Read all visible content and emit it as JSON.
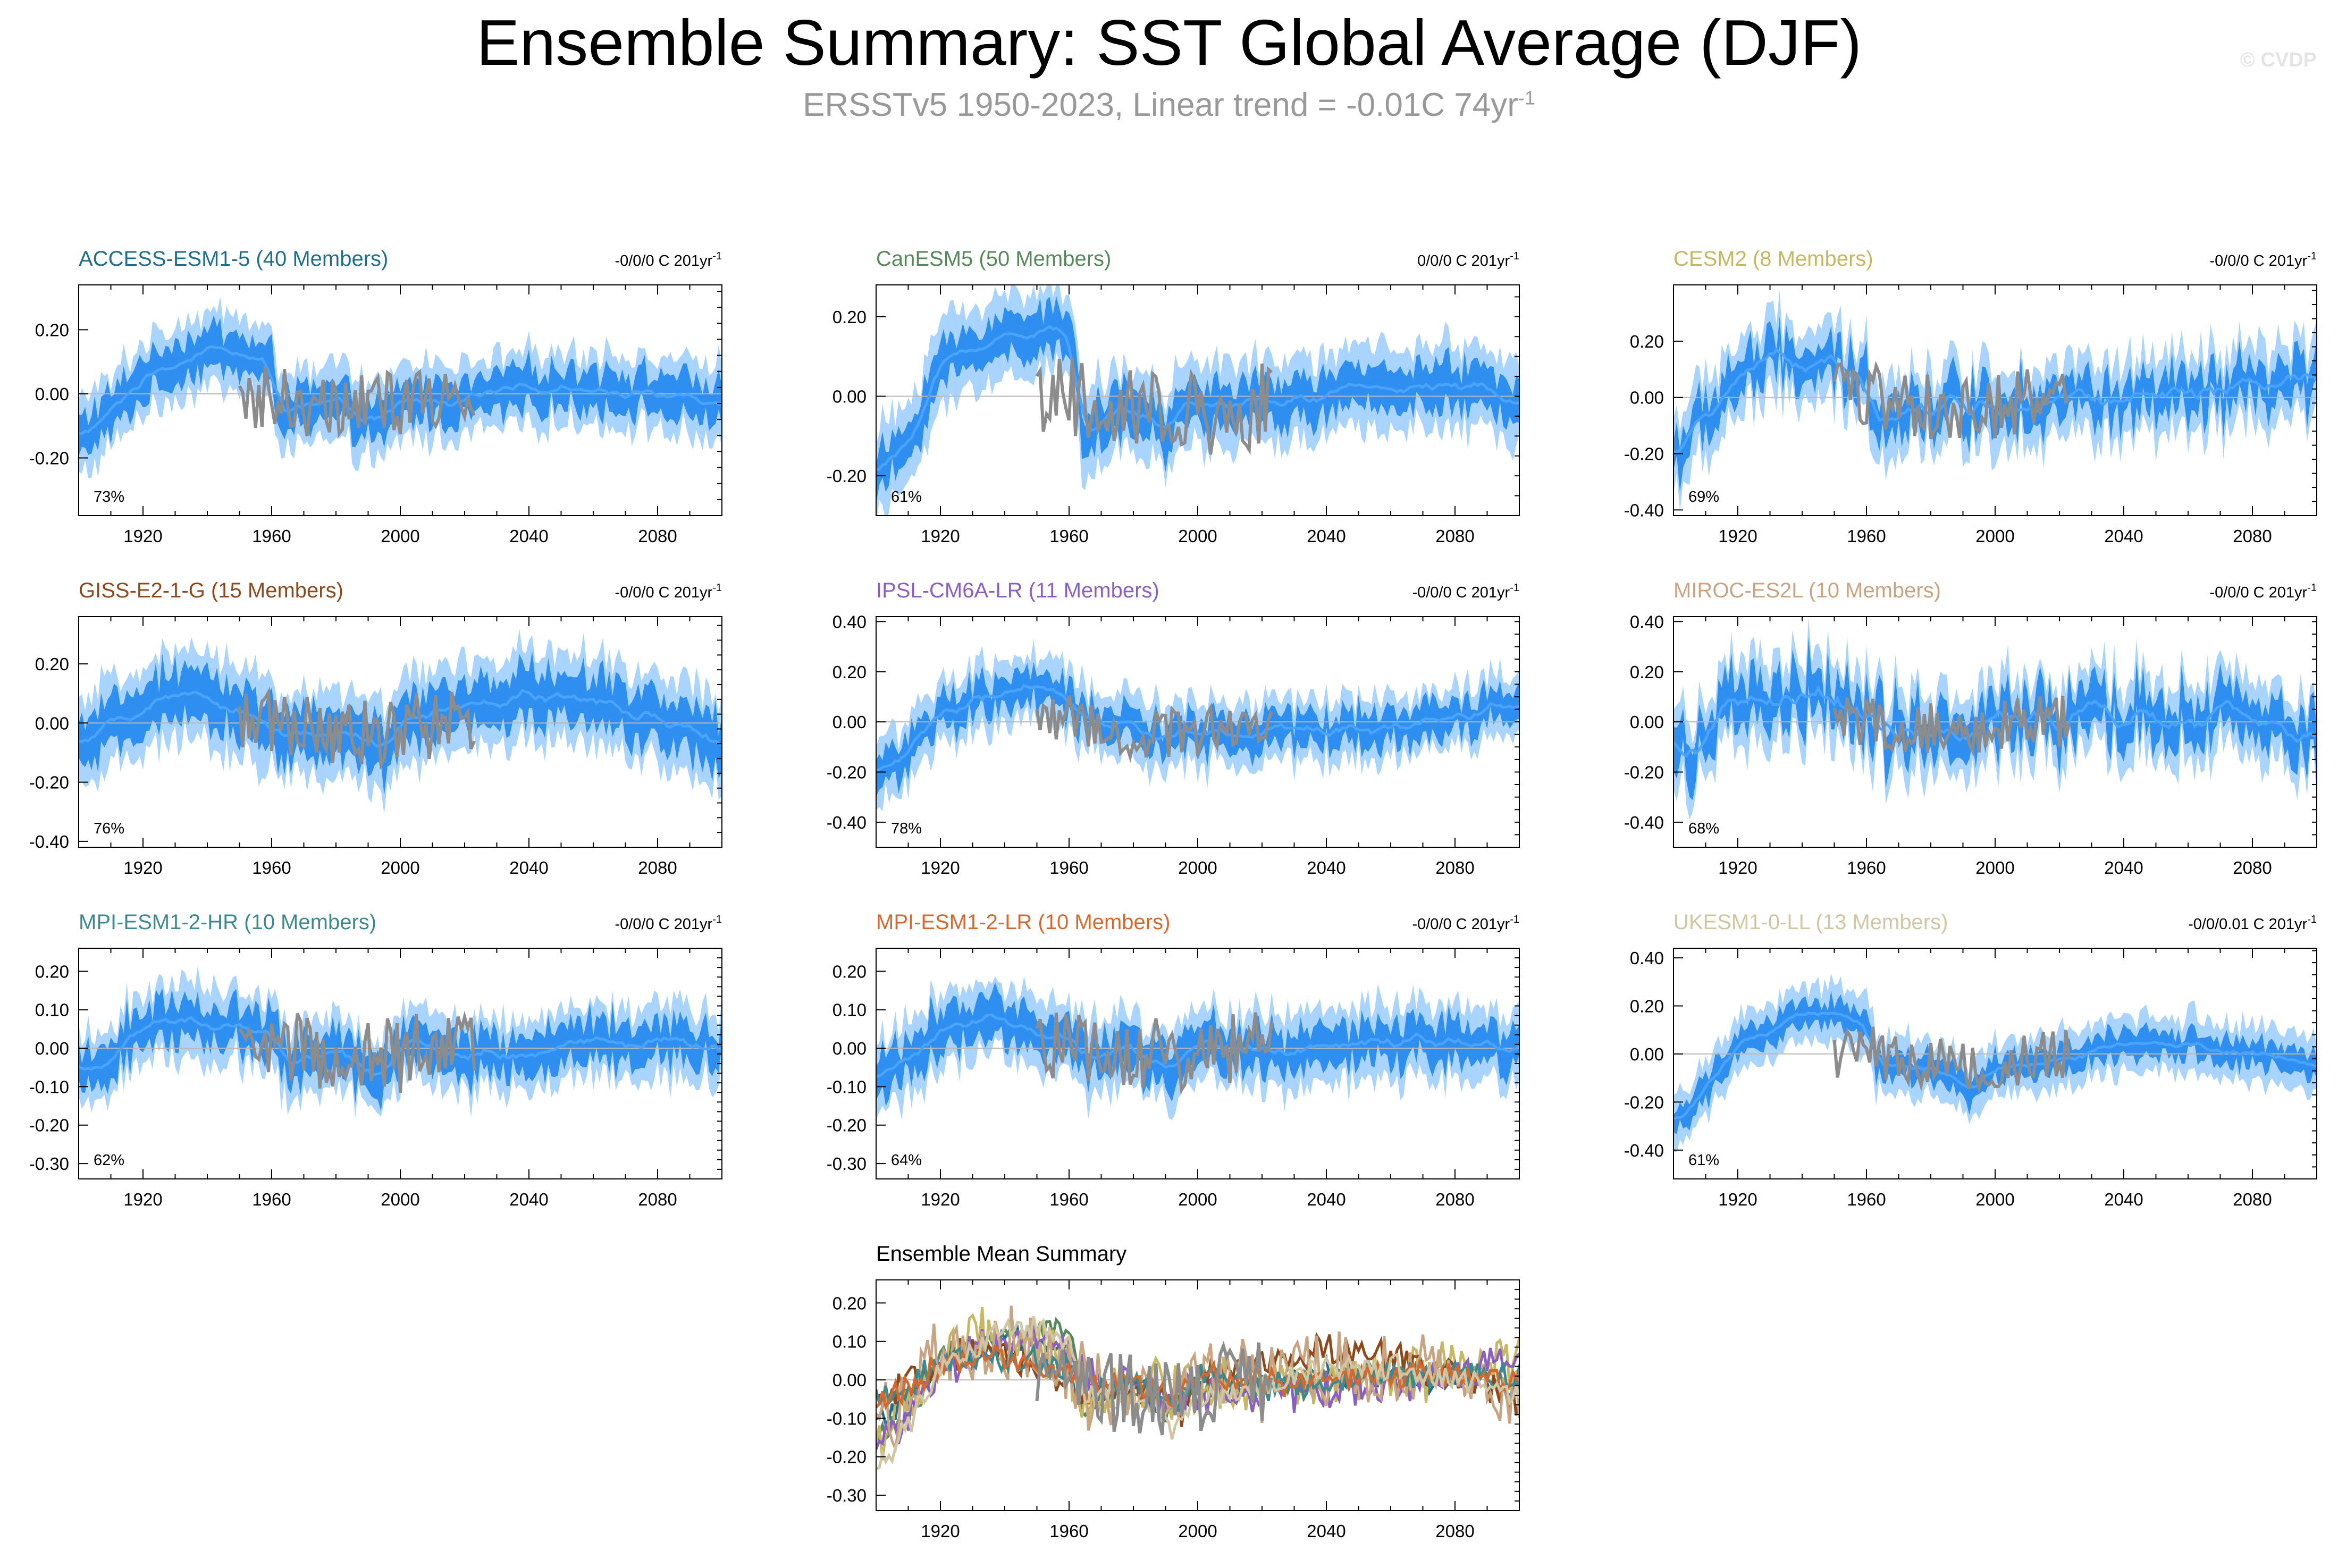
{
  "title": "Ensemble Summary: SST Global Average (DJF)",
  "subtitle": {
    "text": "ERSSTv5 1950-2023, Linear trend = -0.01C 74yr",
    "sup": "-1"
  },
  "credit": "© CVDP",
  "colors": {
    "spread_outer": "#a8d4ff",
    "spread_inner": "#2f8ff0",
    "ensemble_mean": "#4aa4ff",
    "observations": "#8c8c8c",
    "zero_line": "#b8b8b8",
    "frame": "#000000"
  },
  "chart_data": [
    {
      "type": "line",
      "title": "ACCESS-ESM1-5 (40 Members)",
      "title_color": "#1f6e8c",
      "trend_label": "-0/0/0 C 201yr",
      "trend_sup": "-1",
      "percent_label": "73%",
      "xlim": [
        1900,
        2100
      ],
      "xticks": [
        1920,
        1960,
        2000,
        2040,
        2080
      ],
      "ylim": [
        -0.38,
        0.34
      ],
      "yticks": [
        0.2,
        0,
        -0.2
      ],
      "ytick_labels": [
        "0.20",
        "0.00",
        "-0.20"
      ],
      "mean_knots": [
        [
          1900,
          -0.14
        ],
        [
          1910,
          -0.06
        ],
        [
          1920,
          0.05
        ],
        [
          1930,
          0.1
        ],
        [
          1940,
          0.14
        ],
        [
          1950,
          0.13
        ],
        [
          1960,
          0.08
        ],
        [
          1962,
          -0.04
        ],
        [
          1970,
          -0.05
        ],
        [
          1980,
          -0.03
        ],
        [
          1990,
          -0.08
        ],
        [
          1995,
          -0.1
        ],
        [
          2000,
          -0.02
        ],
        [
          2020,
          -0.02
        ],
        [
          2040,
          0.02
        ],
        [
          2060,
          0.02
        ],
        [
          2080,
          0.0
        ],
        [
          2100,
          -0.03
        ]
      ],
      "spread": 0.06,
      "outer": 0.11,
      "noise": 0.04,
      "obs_knots": [
        [
          1950,
          -0.02
        ],
        [
          1960,
          0.0
        ],
        [
          1970,
          -0.03
        ],
        [
          1980,
          -0.05
        ],
        [
          1990,
          -0.04
        ],
        [
          2000,
          -0.03
        ],
        [
          2010,
          -0.02
        ],
        [
          2023,
          -0.01
        ]
      ],
      "obs_amp": 0.1
    },
    {
      "type": "line",
      "title": "CanESM5 (50 Members)",
      "title_color": "#55885a",
      "trend_label": "0/0/0 C 201yr",
      "trend_sup": "-1",
      "percent_label": "61%",
      "xlim": [
        1900,
        2100
      ],
      "xticks": [
        1920,
        1960,
        2000,
        2040,
        2080
      ],
      "ylim": [
        -0.3,
        0.28
      ],
      "yticks": [
        0.2,
        0,
        -0.2
      ],
      "ytick_labels": [
        "0.20",
        "0.00",
        "-0.20"
      ],
      "mean_knots": [
        [
          1900,
          -0.2
        ],
        [
          1910,
          -0.12
        ],
        [
          1920,
          0.08
        ],
        [
          1930,
          0.12
        ],
        [
          1940,
          0.15
        ],
        [
          1950,
          0.17
        ],
        [
          1958,
          0.16
        ],
        [
          1962,
          0.1
        ],
        [
          1964,
          -0.08
        ],
        [
          1975,
          -0.04
        ],
        [
          1985,
          -0.05
        ],
        [
          1990,
          -0.1
        ],
        [
          1995,
          -0.02
        ],
        [
          2020,
          -0.02
        ],
        [
          2040,
          0.0
        ],
        [
          2060,
          0.03
        ],
        [
          2080,
          0.02
        ],
        [
          2100,
          0.0
        ]
      ],
      "spread": 0.05,
      "outer": 0.1,
      "noise": 0.035,
      "obs_knots": [
        [
          1950,
          0.0
        ],
        [
          1960,
          0.0
        ],
        [
          1970,
          -0.02
        ],
        [
          1980,
          -0.04
        ],
        [
          1990,
          -0.03
        ],
        [
          2000,
          -0.05
        ],
        [
          2010,
          -0.03
        ],
        [
          2023,
          -0.02
        ]
      ],
      "obs_amp": 0.11
    },
    {
      "type": "line",
      "title": "CESM2 (8 Members)",
      "title_color": "#c7b763",
      "trend_label": "-0/0/0 C 201yr",
      "trend_sup": "-1",
      "percent_label": "69%",
      "xlim": [
        1900,
        2100
      ],
      "xticks": [
        1920,
        1960,
        2000,
        2040,
        2080
      ],
      "ylim": [
        -0.42,
        0.4
      ],
      "yticks": [
        0.2,
        0,
        -0.2,
        -0.4
      ],
      "ytick_labels": [
        "0.20",
        "0.00",
        "-0.20",
        "-0.40"
      ],
      "mean_knots": [
        [
          1900,
          -0.2
        ],
        [
          1910,
          -0.08
        ],
        [
          1920,
          0.08
        ],
        [
          1930,
          0.13
        ],
        [
          1940,
          0.12
        ],
        [
          1950,
          0.1
        ],
        [
          1960,
          0.05
        ],
        [
          1965,
          -0.05
        ],
        [
          1980,
          -0.03
        ],
        [
          2000,
          -0.02
        ],
        [
          2020,
          0.0
        ],
        [
          2040,
          -0.02
        ],
        [
          2060,
          0.0
        ],
        [
          2080,
          0.02
        ],
        [
          2100,
          0.05
        ]
      ],
      "spread": 0.06,
      "outer": 0.13,
      "noise": 0.09,
      "obs_knots": [
        [
          1950,
          0.0
        ],
        [
          1960,
          0.0
        ],
        [
          1970,
          -0.02
        ],
        [
          1980,
          -0.04
        ],
        [
          1990,
          -0.03
        ],
        [
          2000,
          -0.03
        ],
        [
          2010,
          -0.02
        ],
        [
          2023,
          -0.01
        ]
      ],
      "obs_amp": 0.12
    },
    {
      "type": "line",
      "title": "GISS-E2-1-G (15 Members)",
      "title_color": "#8c4a1c",
      "trend_label": "-0/0/0 C 201yr",
      "trend_sup": "-1",
      "percent_label": "76%",
      "xlim": [
        1900,
        2100
      ],
      "xticks": [
        1920,
        1960,
        2000,
        2040,
        2080
      ],
      "ylim": [
        -0.42,
        0.36
      ],
      "yticks": [
        0.2,
        0,
        -0.2,
        -0.4
      ],
      "ytick_labels": [
        "0.20",
        "0.00",
        "-0.20",
        "-0.40"
      ],
      "mean_knots": [
        [
          1900,
          -0.08
        ],
        [
          1910,
          -0.02
        ],
        [
          1920,
          0.06
        ],
        [
          1930,
          0.08
        ],
        [
          1940,
          0.07
        ],
        [
          1950,
          0.05
        ],
        [
          1960,
          0.0
        ],
        [
          1965,
          -0.05
        ],
        [
          1980,
          -0.03
        ],
        [
          1995,
          -0.1
        ],
        [
          2000,
          0.0
        ],
        [
          2020,
          0.05
        ],
        [
          2040,
          0.1
        ],
        [
          2060,
          0.07
        ],
        [
          2080,
          0.02
        ],
        [
          2100,
          -0.08
        ]
      ],
      "spread": 0.08,
      "outer": 0.14,
      "noise": 0.05,
      "obs_knots": [
        [
          1950,
          0.0
        ],
        [
          1960,
          0.02
        ],
        [
          1970,
          -0.02
        ],
        [
          1980,
          -0.02
        ],
        [
          1990,
          -0.03
        ],
        [
          2000,
          -0.02
        ],
        [
          2010,
          0.0
        ],
        [
          2023,
          0.02
        ]
      ],
      "obs_amp": 0.12
    },
    {
      "type": "line",
      "title": "IPSL-CM6A-LR (11 Members)",
      "title_color": "#8a5fc4",
      "trend_label": "-0/0/0 C 201yr",
      "trend_sup": "-1",
      "percent_label": "78%",
      "xlim": [
        1900,
        2100
      ],
      "xticks": [
        1920,
        1960,
        2000,
        2040,
        2080
      ],
      "ylim": [
        -0.5,
        0.42
      ],
      "yticks": [
        0.4,
        0.2,
        0,
        -0.2,
        -0.4
      ],
      "ytick_labels": [
        "0.40",
        "0.20",
        "0.00",
        "-0.20",
        "-0.40"
      ],
      "mean_knots": [
        [
          1900,
          -0.2
        ],
        [
          1910,
          -0.12
        ],
        [
          1920,
          0.02
        ],
        [
          1930,
          0.08
        ],
        [
          1940,
          0.12
        ],
        [
          1950,
          0.14
        ],
        [
          1958,
          0.08
        ],
        [
          1965,
          0.02
        ],
        [
          1980,
          -0.02
        ],
        [
          1990,
          -0.08
        ],
        [
          2000,
          -0.04
        ],
        [
          2020,
          -0.04
        ],
        [
          2040,
          -0.03
        ],
        [
          2060,
          -0.02
        ],
        [
          2080,
          0.02
        ],
        [
          2100,
          0.08
        ]
      ],
      "spread": 0.06,
      "outer": 0.12,
      "noise": 0.06,
      "obs_knots": [
        [
          1950,
          0.0
        ],
        [
          1960,
          0.02
        ],
        [
          1970,
          -0.03
        ],
        [
          1980,
          -0.05
        ],
        [
          1990,
          -0.04
        ],
        [
          2000,
          -0.04
        ],
        [
          2010,
          -0.02
        ],
        [
          2023,
          -0.02
        ]
      ],
      "obs_amp": 0.1
    },
    {
      "type": "line",
      "title": "MIROC-ES2L (10 Members)",
      "title_color": "#c8a482",
      "trend_label": "-0/0/0 C 201yr",
      "trend_sup": "-1",
      "percent_label": "68%",
      "xlim": [
        1900,
        2100
      ],
      "xticks": [
        1920,
        1960,
        2000,
        2040,
        2080
      ],
      "ylim": [
        -0.5,
        0.42
      ],
      "yticks": [
        0.4,
        0.2,
        0,
        -0.2,
        -0.4
      ],
      "ytick_labels": [
        "0.40",
        "0.20",
        "0.00",
        "-0.20",
        "-0.40"
      ],
      "mean_knots": [
        [
          1900,
          -0.12
        ],
        [
          1910,
          -0.05
        ],
        [
          1920,
          0.05
        ],
        [
          1930,
          0.08
        ],
        [
          1940,
          0.1
        ],
        [
          1950,
          0.08
        ],
        [
          1960,
          0.03
        ],
        [
          1965,
          -0.03
        ],
        [
          1980,
          -0.02
        ],
        [
          1995,
          -0.06
        ],
        [
          2000,
          0.0
        ],
        [
          2020,
          0.0
        ],
        [
          2040,
          0.02
        ],
        [
          2060,
          0.02
        ],
        [
          2080,
          0.0
        ],
        [
          2100,
          -0.05
        ]
      ],
      "spread": 0.08,
      "outer": 0.15,
      "noise": 0.12,
      "obs_knots": [
        [
          1950,
          0.0
        ],
        [
          1960,
          0.02
        ],
        [
          1970,
          -0.02
        ],
        [
          1980,
          -0.03
        ],
        [
          1990,
          -0.03
        ],
        [
          2000,
          -0.03
        ],
        [
          2010,
          -0.01
        ],
        [
          2023,
          0.0
        ]
      ],
      "obs_amp": 0.11
    },
    {
      "type": "line",
      "title": "MPI-ESM1-2-HR (10 Members)",
      "title_color": "#3c8a8e",
      "trend_label": "-0/0/0 C 201yr",
      "trend_sup": "-1",
      "percent_label": "62%",
      "xlim": [
        1900,
        2100
      ],
      "xticks": [
        1920,
        1960,
        2000,
        2040,
        2080
      ],
      "ylim": [
        -0.34,
        0.26
      ],
      "yticks": [
        0.2,
        0.1,
        0,
        -0.1,
        -0.2,
        -0.3
      ],
      "ytick_labels": [
        "0.20",
        "0.10",
        "0.00",
        "-0.10",
        "-0.20",
        "-0.30"
      ],
      "mean_knots": [
        [
          1900,
          -0.08
        ],
        [
          1910,
          -0.02
        ],
        [
          1920,
          0.06
        ],
        [
          1930,
          0.07
        ],
        [
          1940,
          0.06
        ],
        [
          1950,
          0.07
        ],
        [
          1960,
          0.03
        ],
        [
          1965,
          -0.04
        ],
        [
          1980,
          -0.01
        ],
        [
          1993,
          -0.08
        ],
        [
          2000,
          0.02
        ],
        [
          2020,
          -0.02
        ],
        [
          2040,
          -0.02
        ],
        [
          2060,
          0.02
        ],
        [
          2080,
          0.03
        ],
        [
          2100,
          0.0
        ]
      ],
      "spread": 0.05,
      "outer": 0.09,
      "noise": 0.04,
      "obs_knots": [
        [
          1950,
          0.0
        ],
        [
          1960,
          0.02
        ],
        [
          1970,
          0.0
        ],
        [
          1980,
          -0.02
        ],
        [
          1990,
          -0.01
        ],
        [
          2000,
          -0.02
        ],
        [
          2010,
          0.0
        ],
        [
          2023,
          0.02
        ]
      ],
      "obs_amp": 0.1
    },
    {
      "type": "line",
      "title": "MPI-ESM1-2-LR (10 Members)",
      "title_color": "#d4682e",
      "trend_label": "-0/0/0 C 201yr",
      "trend_sup": "-1",
      "percent_label": "64%",
      "xlim": [
        1900,
        2100
      ],
      "xticks": [
        1920,
        1960,
        2000,
        2040,
        2080
      ],
      "ylim": [
        -0.34,
        0.26
      ],
      "yticks": [
        0.2,
        0.1,
        0,
        -0.1,
        -0.2,
        -0.3
      ],
      "ytick_labels": [
        "0.20",
        "0.10",
        "0.00",
        "-0.10",
        "-0.20",
        "-0.30"
      ],
      "mean_knots": [
        [
          1900,
          -0.08
        ],
        [
          1910,
          -0.02
        ],
        [
          1920,
          0.04
        ],
        [
          1930,
          0.06
        ],
        [
          1940,
          0.07
        ],
        [
          1950,
          0.06
        ],
        [
          1960,
          0.02
        ],
        [
          1965,
          -0.04
        ],
        [
          1980,
          0.0
        ],
        [
          1993,
          -0.06
        ],
        [
          2000,
          0.02
        ],
        [
          2020,
          -0.01
        ],
        [
          2040,
          0.0
        ],
        [
          2060,
          0.02
        ],
        [
          2080,
          0.02
        ],
        [
          2100,
          0.0
        ]
      ],
      "spread": 0.05,
      "outer": 0.09,
      "noise": 0.04,
      "obs_knots": [
        [
          1950,
          0.0
        ],
        [
          1960,
          0.02
        ],
        [
          1970,
          0.0
        ],
        [
          1980,
          -0.02
        ],
        [
          1990,
          -0.02
        ],
        [
          2000,
          -0.02
        ],
        [
          2010,
          0.0
        ],
        [
          2023,
          0.02
        ]
      ],
      "obs_amp": 0.1
    },
    {
      "type": "line",
      "title": "UKESM1-0-LL (13 Members)",
      "title_color": "#d1c6a4",
      "trend_label": "-0/0/0.01 C 201yr",
      "trend_sup": "-1",
      "percent_label": "61%",
      "xlim": [
        1900,
        2100
      ],
      "xticks": [
        1920,
        1960,
        2000,
        2040,
        2080
      ],
      "ylim": [
        -0.52,
        0.44
      ],
      "yticks": [
        0.4,
        0.2,
        0,
        -0.2,
        -0.4
      ],
      "ytick_labels": [
        "0.40",
        "0.20",
        "0.00",
        "-0.20",
        "-0.40"
      ],
      "mean_knots": [
        [
          1900,
          -0.3
        ],
        [
          1910,
          -0.14
        ],
        [
          1920,
          0.03
        ],
        [
          1930,
          0.1
        ],
        [
          1940,
          0.15
        ],
        [
          1950,
          0.17
        ],
        [
          1960,
          0.12
        ],
        [
          1963,
          -0.04
        ],
        [
          1980,
          -0.06
        ],
        [
          1993,
          -0.15
        ],
        [
          2000,
          -0.06
        ],
        [
          2020,
          -0.03
        ],
        [
          2040,
          0.04
        ],
        [
          2060,
          0.04
        ],
        [
          2080,
          0.0
        ],
        [
          2100,
          -0.05
        ]
      ],
      "spread": 0.05,
      "outer": 0.11,
      "noise": 0.04,
      "obs_knots": [
        [
          1950,
          0.0
        ],
        [
          1960,
          0.02
        ],
        [
          1970,
          -0.02
        ],
        [
          1980,
          -0.04
        ],
        [
          1990,
          -0.05
        ],
        [
          2000,
          -0.03
        ],
        [
          2010,
          -0.02
        ],
        [
          2023,
          0.0
        ]
      ],
      "obs_amp": 0.11
    },
    {
      "type": "line",
      "title": "Ensemble Mean Summary",
      "title_color": "#000000",
      "xlim": [
        1900,
        2100
      ],
      "xticks": [
        1920,
        1960,
        2000,
        2040,
        2080
      ],
      "ylim": [
        -0.34,
        0.26
      ],
      "yticks": [
        0.2,
        0.1,
        0,
        -0.1,
        -0.2,
        -0.3
      ],
      "ytick_labels": [
        "0.20",
        "0.10",
        "0.00",
        "-0.10",
        "-0.20",
        "-0.30"
      ],
      "series_from_models": true,
      "obs_knots": [
        [
          1950,
          0.0
        ],
        [
          1960,
          0.02
        ],
        [
          1970,
          -0.02
        ],
        [
          1980,
          -0.04
        ],
        [
          1990,
          -0.04
        ],
        [
          2000,
          -0.03
        ],
        [
          2010,
          -0.01
        ],
        [
          2023,
          0.0
        ]
      ],
      "obs_amp": 0.11
    }
  ]
}
